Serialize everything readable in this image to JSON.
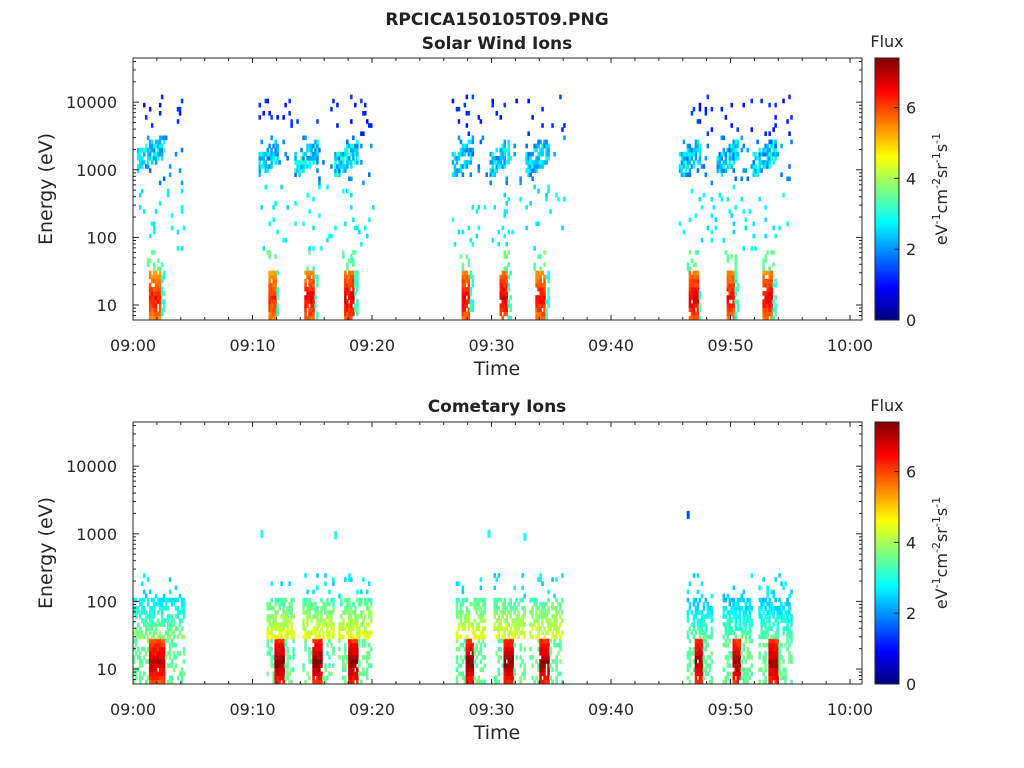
{
  "figure": {
    "title": "RPCICA150105T09.PNG"
  },
  "colormap": {
    "name": "jet",
    "stops": [
      "#00007f",
      "#0000ff",
      "#007fff",
      "#00ffff",
      "#7fff7f",
      "#ffff00",
      "#ff7f00",
      "#ff0000",
      "#7f0000"
    ]
  },
  "chart_data": [
    {
      "type": "heatmap",
      "title": "Solar Wind Ions",
      "xlabel": "Time",
      "ylabel": "Energy (eV)",
      "y_scale": "log",
      "xlim": [
        "09:00",
        "10:01"
      ],
      "ylim": [
        6,
        45000
      ],
      "x_ticks": [
        "09:00",
        "09:10",
        "09:20",
        "09:30",
        "09:40",
        "09:50",
        "10:00"
      ],
      "y_ticks": [
        10,
        100,
        1000,
        10000
      ],
      "y_tick_labels": [
        "10",
        "100",
        "1000",
        "10000"
      ],
      "colorbar": {
        "title": "Flux",
        "label": "eV-1cm-2sr-1s-1",
        "range": [
          0,
          7.4
        ],
        "ticks": [
          0,
          2,
          4,
          6
        ],
        "tick_labels": [
          "0",
          "2",
          "4",
          "6"
        ]
      },
      "grid": false,
      "bursts": [
        {
          "start": "09:00:20",
          "end": "09:04:10",
          "low_energy_flux": 6.4,
          "peak_energy": 1800,
          "peak_flux": 1.9
        },
        {
          "start": "09:10:30",
          "end": "09:13:10",
          "low_energy_flux": 6.3,
          "peak_energy": 1500,
          "peak_flux": 1.8
        },
        {
          "start": "09:13:30",
          "end": "09:16:40",
          "low_energy_flux": 6.6,
          "peak_energy": 1500,
          "peak_flux": 1.8
        },
        {
          "start": "09:16:50",
          "end": "09:20:00",
          "low_energy_flux": 6.7,
          "peak_energy": 1500,
          "peak_flux": 1.9
        },
        {
          "start": "09:26:40",
          "end": "09:29:30",
          "low_energy_flux": 6.6,
          "peak_energy": 1500,
          "peak_flux": 1.8
        },
        {
          "start": "09:29:50",
          "end": "09:32:40",
          "low_energy_flux": 6.7,
          "peak_energy": 1500,
          "peak_flux": 1.8
        },
        {
          "start": "09:32:50",
          "end": "09:36:00",
          "low_energy_flux": 6.5,
          "peak_energy": 1500,
          "peak_flux": 1.8
        },
        {
          "start": "09:45:40",
          "end": "09:48:40",
          "low_energy_flux": 6.7,
          "peak_energy": 1500,
          "peak_flux": 1.8
        },
        {
          "start": "09:48:50",
          "end": "09:51:40",
          "low_energy_flux": 6.5,
          "peak_energy": 1500,
          "peak_flux": 1.8
        },
        {
          "start": "09:51:50",
          "end": "09:55:00",
          "low_energy_flux": 6.6,
          "peak_energy": 1500,
          "peak_flux": 1.8
        }
      ]
    },
    {
      "type": "heatmap",
      "title": "Cometary Ions",
      "xlabel": "Time",
      "ylabel": "Energy (eV)",
      "y_scale": "log",
      "xlim": [
        "09:00",
        "10:01"
      ],
      "ylim": [
        6,
        45000
      ],
      "x_ticks": [
        "09:00",
        "09:10",
        "09:20",
        "09:30",
        "09:40",
        "09:50",
        "10:00"
      ],
      "y_ticks": [
        10,
        100,
        1000,
        10000
      ],
      "y_tick_labels": [
        "10",
        "100",
        "1000",
        "10000"
      ],
      "colorbar": {
        "title": "Flux",
        "label": "eV-1cm-2sr-1s-1",
        "range": [
          0,
          7.4
        ],
        "ticks": [
          0,
          2,
          4,
          6
        ],
        "tick_labels": [
          "0",
          "2",
          "4",
          "6"
        ]
      },
      "grid": false,
      "bursts": [
        {
          "start": "09:00:00",
          "end": "09:04:10",
          "low_energy_flux": 7.0,
          "peak_energy": 60,
          "peak_flux": 3.8
        },
        {
          "start": "09:11:10",
          "end": "09:13:20",
          "low_energy_flux": 7.3,
          "peak_energy": 50,
          "peak_flux": 4.5
        },
        {
          "start": "09:14:10",
          "end": "09:16:40",
          "low_energy_flux": 7.3,
          "peak_energy": 50,
          "peak_flux": 4.5
        },
        {
          "start": "09:17:10",
          "end": "09:19:50",
          "low_energy_flux": 7.3,
          "peak_energy": 50,
          "peak_flux": 4.5
        },
        {
          "start": "09:27:00",
          "end": "09:29:20",
          "low_energy_flux": 7.3,
          "peak_energy": 50,
          "peak_flux": 4.5
        },
        {
          "start": "09:30:10",
          "end": "09:32:40",
          "low_energy_flux": 7.3,
          "peak_energy": 50,
          "peak_flux": 4.5
        },
        {
          "start": "09:33:10",
          "end": "09:35:50",
          "low_energy_flux": 7.3,
          "peak_energy": 50,
          "peak_flux": 4.5
        },
        {
          "start": "09:46:20",
          "end": "09:48:20",
          "low_energy_flux": 7.2,
          "peak_energy": 40,
          "peak_flux": 3.5
        },
        {
          "start": "09:49:20",
          "end": "09:51:40",
          "low_energy_flux": 7.2,
          "peak_energy": 40,
          "peak_flux": 3.5
        },
        {
          "start": "09:52:20",
          "end": "09:55:00",
          "low_energy_flux": 7.2,
          "peak_energy": 40,
          "peak_flux": 3.5
        }
      ]
    }
  ]
}
